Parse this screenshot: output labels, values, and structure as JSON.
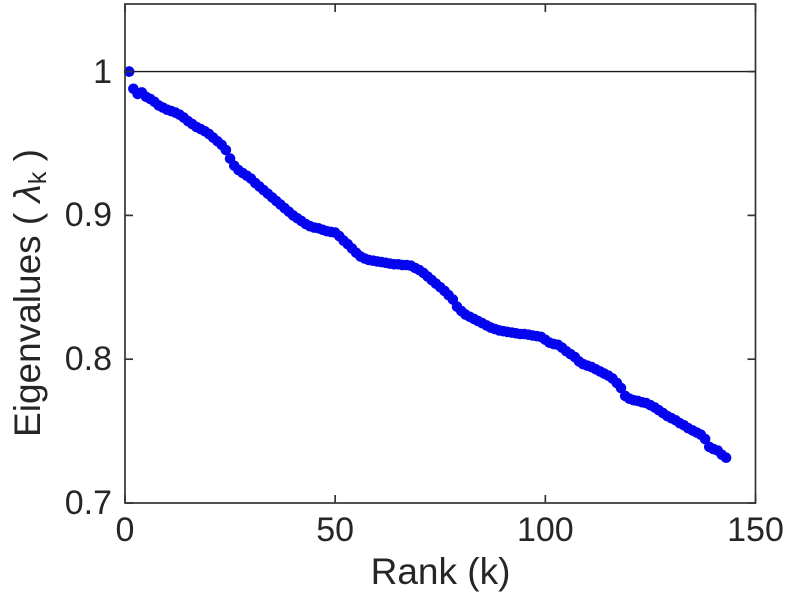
{
  "figure": {
    "background": "#ffffff",
    "xlabel": "Rank (k)",
    "ylabel": {
      "prefix": "Eigenvalues ( ",
      "lambda": "λ",
      "subscript": "k",
      "suffix": " )"
    }
  },
  "chart_data": {
    "type": "scatter",
    "title": "",
    "xlabel": "Rank (k)",
    "ylabel": "Eigenvalues ( λ_k )",
    "xlim": [
      0,
      150
    ],
    "ylim": [
      0.7,
      1.047
    ],
    "xticks": [
      0,
      50,
      100,
      150
    ],
    "yticks": [
      0.7,
      0.8,
      0.9,
      1
    ],
    "xtick_labels": [
      "0",
      "50",
      "100",
      "150"
    ],
    "ytick_labels": [
      "0.7",
      "0.8",
      "0.9",
      "1"
    ],
    "grid": false,
    "legend": null,
    "box": true,
    "tick_direction": "in",
    "reference_line": {
      "y": 1.0,
      "color": "#1a1a1a"
    },
    "marker": {
      "shape": "dot",
      "color": "#0404ee"
    },
    "axis_color": "#333333",
    "series": [
      {
        "name": "eigenvalues",
        "x_start": 1,
        "x_step": 1,
        "y": [
          1.0,
          0.988,
          0.9845,
          0.9855,
          0.9825,
          0.981,
          0.979,
          0.9765,
          0.975,
          0.9735,
          0.9725,
          0.9715,
          0.97,
          0.968,
          0.9655,
          0.9635,
          0.9615,
          0.96,
          0.9585,
          0.9565,
          0.954,
          0.9515,
          0.949,
          0.9455,
          0.9395,
          0.9345,
          0.9315,
          0.9295,
          0.9275,
          0.9255,
          0.9225,
          0.92,
          0.9175,
          0.915,
          0.9125,
          0.91,
          0.9075,
          0.905,
          0.9025,
          0.9,
          0.898,
          0.896,
          0.894,
          0.8925,
          0.8915,
          0.891,
          0.89,
          0.889,
          0.8885,
          0.888,
          0.8855,
          0.8825,
          0.88,
          0.877,
          0.874,
          0.8715,
          0.87,
          0.869,
          0.8685,
          0.868,
          0.8675,
          0.867,
          0.8665,
          0.866,
          0.866,
          0.8655,
          0.8655,
          0.865,
          0.8635,
          0.862,
          0.86,
          0.8575,
          0.855,
          0.8525,
          0.85,
          0.8475,
          0.8445,
          0.8415,
          0.8365,
          0.8335,
          0.831,
          0.8295,
          0.828,
          0.8265,
          0.825,
          0.8235,
          0.822,
          0.821,
          0.82,
          0.8195,
          0.819,
          0.8185,
          0.818,
          0.8175,
          0.8175,
          0.817,
          0.8165,
          0.816,
          0.8155,
          0.8135,
          0.8115,
          0.8105,
          0.81,
          0.808,
          0.8055,
          0.8035,
          0.8015,
          0.7985,
          0.7965,
          0.7955,
          0.7945,
          0.793,
          0.7915,
          0.79,
          0.7885,
          0.7865,
          0.7835,
          0.78,
          0.7745,
          0.7725,
          0.7715,
          0.771,
          0.77,
          0.7695,
          0.768,
          0.7665,
          0.7645,
          0.7625,
          0.7605,
          0.759,
          0.7575,
          0.7555,
          0.754,
          0.752,
          0.7505,
          0.749,
          0.7475,
          0.7445,
          0.739,
          0.7375,
          0.7365,
          0.7335,
          0.7315
        ]
      }
    ]
  }
}
